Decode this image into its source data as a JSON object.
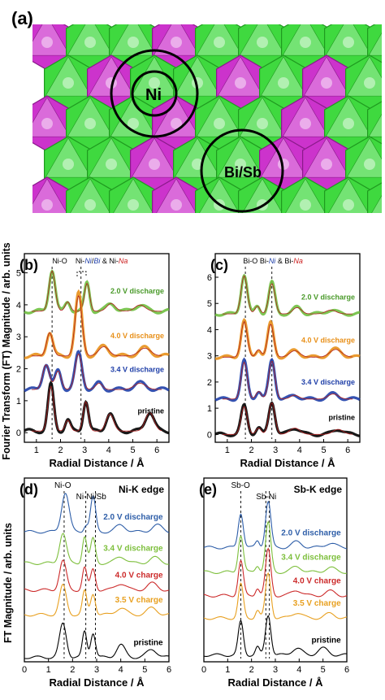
{
  "panel_a": {
    "label": "(a)",
    "circle_labels": [
      "Ni",
      "Bi/Sb"
    ],
    "colors": {
      "green": "#3fd93f",
      "green_dark": "#1f9a1f",
      "magenta": "#cc33cc",
      "magenta_dark": "#8b1a8b"
    }
  },
  "shared": {
    "y_title_top": "Fourier Transform (FT) Magnitude / arb. units",
    "y_title_bottom": "FT Magnitude / arb. units",
    "x_title": "Radial Distance / Å"
  },
  "chart_data": [
    {
      "id": "b",
      "type": "line",
      "panel_label": "(b)",
      "edge_label": "",
      "peak_labels": [
        {
          "text": "Ni-O",
          "color": "#000000"
        },
        {
          "text": "Ni-",
          "color": "#000000"
        },
        {
          "text": "Ni",
          "color": "#1f3fa8"
        },
        {
          "text": "/",
          "color": "#000000"
        },
        {
          "text": "Bi",
          "color": "#1f3fa8"
        },
        {
          "text": " & Ni-",
          "color": "#000000"
        },
        {
          "text": "Na",
          "color": "#cc2020"
        }
      ],
      "xlim": [
        0.5,
        6.5
      ],
      "ylim": [
        -0.3,
        5.6
      ],
      "xticks": [
        1,
        2,
        3,
        4,
        5,
        6
      ],
      "yticks": [
        0,
        1,
        2,
        3,
        4,
        5
      ],
      "dashed_x": [
        1.65,
        2.85
      ],
      "series": [
        {
          "name": "2.0 V discharge",
          "color": "#6fbf3f",
          "offset": 3.8,
          "peaks": [
            [
              1.65,
              1.3,
              0.18
            ],
            [
              2.3,
              0.3,
              0.15
            ],
            [
              3.1,
              0.9,
              0.15
            ],
            [
              4.1,
              0.25,
              0.25
            ],
            [
              5.3,
              0.2,
              0.3
            ]
          ]
        },
        {
          "name": "4.0 V discharge",
          "color": "#e8901a",
          "offset": 2.4,
          "peaks": [
            [
              1.55,
              0.75,
              0.18
            ],
            [
              2.75,
              1.95,
              0.2
            ],
            [
              3.8,
              0.3,
              0.3
            ],
            [
              5.5,
              0.25,
              0.35
            ]
          ]
        },
        {
          "name": "3.4 V discharge",
          "color": "#1f3fa8",
          "offset": 1.35,
          "peaks": [
            [
              1.4,
              0.8,
              0.2
            ],
            [
              1.9,
              0.6,
              0.18
            ],
            [
              2.75,
              1.15,
              0.2
            ],
            [
              3.6,
              0.2,
              0.2
            ],
            [
              5.3,
              0.2,
              0.35
            ]
          ]
        },
        {
          "name": "pristine",
          "color": "#000000",
          "offset": 0.05,
          "peaks": [
            [
              1.6,
              1.45,
              0.17
            ],
            [
              2.3,
              0.35,
              0.15
            ],
            [
              3.05,
              0.95,
              0.15
            ],
            [
              4.05,
              0.55,
              0.22
            ],
            [
              5.7,
              0.6,
              0.25
            ]
          ]
        }
      ]
    },
    {
      "id": "c",
      "type": "line",
      "panel_label": "(c)",
      "edge_label": "",
      "peak_labels": [
        {
          "text": "Bi-O  Bi-",
          "color": "#000000"
        },
        {
          "text": "Ni",
          "color": "#1f3fa8"
        },
        {
          "text": " & Bi-",
          "color": "#000000"
        },
        {
          "text": "Na",
          "color": "#cc2020"
        }
      ],
      "xlim": [
        0.5,
        6.5
      ],
      "ylim": [
        -0.3,
        6.9
      ],
      "xticks": [
        1,
        2,
        3,
        4,
        5,
        6
      ],
      "yticks": [
        0,
        1,
        2,
        3,
        4,
        5,
        6
      ],
      "dashed_x": [
        1.75,
        2.85
      ],
      "series": [
        {
          "name": "2.0 V discharge",
          "color": "#6fbf3f",
          "offset": 4.6,
          "peaks": [
            [
              1.7,
              1.5,
              0.18
            ],
            [
              2.25,
              0.3,
              0.15
            ],
            [
              2.85,
              1.2,
              0.18
            ],
            [
              3.9,
              0.25,
              0.25
            ],
            [
              5.3,
              0.15,
              0.3
            ]
          ]
        },
        {
          "name": "4.0 V discharge",
          "color": "#e8901a",
          "offset": 2.95,
          "peaks": [
            [
              1.7,
              1.4,
              0.18
            ],
            [
              2.3,
              0.3,
              0.15
            ],
            [
              2.8,
              1.3,
              0.18
            ],
            [
              3.8,
              0.25,
              0.3
            ],
            [
              5.5,
              0.3,
              0.35
            ]
          ]
        },
        {
          "name": "3.4 V discharge",
          "color": "#1f3fa8",
          "offset": 1.35,
          "peaks": [
            [
              1.7,
              1.45,
              0.18
            ],
            [
              2.3,
              0.3,
              0.15
            ],
            [
              2.85,
              1.5,
              0.18
            ],
            [
              3.8,
              0.15,
              0.25
            ],
            [
              5.4,
              0.2,
              0.3
            ]
          ]
        },
        {
          "name": "pristine",
          "color": "#000000",
          "offset": 0.0,
          "peaks": [
            [
              1.7,
              1.1,
              0.18
            ],
            [
              2.3,
              0.25,
              0.15
            ],
            [
              2.85,
              1.25,
              0.18
            ],
            [
              3.8,
              0.25,
              0.3
            ],
            [
              5.6,
              0.2,
              0.3
            ]
          ]
        }
      ]
    },
    {
      "id": "d",
      "type": "line",
      "panel_label": "(d)",
      "edge_label": "Ni-K edge",
      "peak_labels": [
        {
          "text": "Ni-O",
          "color": "#000000"
        },
        {
          "text": "Ni-Ni/Sb",
          "color": "#000000"
        }
      ],
      "xlim": [
        0,
        6
      ],
      "ylim": [
        0,
        8.2
      ],
      "xticks": [
        0,
        1,
        2,
        3,
        4,
        5,
        6
      ],
      "yticks": [],
      "dashed_x": [
        1.65,
        2.55,
        2.95
      ],
      "series": [
        {
          "name": "2.0 V discharge",
          "color": "#2e5ea8",
          "offset": 5.8,
          "peaks": [
            [
              1.7,
              1.75,
              0.22
            ],
            [
              2.55,
              0.3,
              0.12
            ],
            [
              2.85,
              1.55,
              0.15
            ],
            [
              4.0,
              0.3,
              0.3
            ],
            [
              5.5,
              0.3,
              0.3
            ]
          ]
        },
        {
          "name": "3.4 V discharge",
          "color": "#7dbf3c",
          "offset": 4.4,
          "peaks": [
            [
              1.6,
              1.35,
              0.2
            ],
            [
              2.5,
              1.2,
              0.13
            ],
            [
              2.85,
              1.1,
              0.14
            ],
            [
              4.0,
              0.3,
              0.3
            ],
            [
              5.4,
              0.25,
              0.3
            ]
          ]
        },
        {
          "name": "4.0 V charge",
          "color": "#cc2a2a",
          "offset": 3.2,
          "peaks": [
            [
              1.6,
              1.3,
              0.2
            ],
            [
              2.5,
              1.0,
              0.13
            ],
            [
              2.85,
              0.95,
              0.14
            ],
            [
              4.0,
              0.3,
              0.3
            ],
            [
              5.3,
              0.3,
              0.3
            ]
          ]
        },
        {
          "name": "3.5 V charge",
          "color": "#e8a020",
          "offset": 2.1,
          "peaks": [
            [
              1.6,
              1.3,
              0.2
            ],
            [
              2.5,
              1.05,
              0.13
            ],
            [
              2.85,
              0.95,
              0.14
            ],
            [
              4.0,
              0.3,
              0.3
            ],
            [
              5.3,
              0.3,
              0.3
            ]
          ]
        },
        {
          "name": "pristine",
          "color": "#000000",
          "offset": 0.2,
          "peaks": [
            [
              1.6,
              1.5,
              0.2
            ],
            [
              2.5,
              1.15,
              0.13
            ],
            [
              2.85,
              1.1,
              0.14
            ],
            [
              4.0,
              0.55,
              0.25
            ],
            [
              5.3,
              0.35,
              0.3
            ]
          ]
        }
      ]
    },
    {
      "id": "e",
      "type": "line",
      "panel_label": "(e)",
      "edge_label": "Sb-K edge",
      "peak_labels": [
        {
          "text": "Sb-O",
          "color": "#000000"
        },
        {
          "text": "Sb-Ni",
          "color": "#000000"
        }
      ],
      "xlim": [
        0,
        6
      ],
      "ylim": [
        0,
        8.2
      ],
      "xticks": [
        0,
        1,
        2,
        3,
        4,
        5,
        6
      ],
      "yticks": [],
      "dashed_x": [
        1.55,
        2.6,
        2.75
      ],
      "series": [
        {
          "name": "2.0 V discharge",
          "color": "#2e5ea8",
          "offset": 5.1,
          "peaks": [
            [
              1.55,
              1.55,
              0.15
            ],
            [
              2.25,
              0.3,
              0.12
            ],
            [
              2.7,
              2.05,
              0.16
            ],
            [
              3.9,
              0.25,
              0.3
            ],
            [
              5.3,
              0.2,
              0.3
            ]
          ]
        },
        {
          "name": "3.4 V discharge",
          "color": "#7dbf3c",
          "offset": 4.0,
          "peaks": [
            [
              1.55,
              1.65,
              0.15
            ],
            [
              2.25,
              0.3,
              0.12
            ],
            [
              2.7,
              2.2,
              0.16
            ],
            [
              3.9,
              0.25,
              0.3
            ],
            [
              5.3,
              0.2,
              0.3
            ]
          ]
        },
        {
          "name": "4.0 V charge",
          "color": "#cc2a2a",
          "offset": 2.95,
          "peaks": [
            [
              1.55,
              1.55,
              0.15
            ],
            [
              2.25,
              0.35,
              0.12
            ],
            [
              2.7,
              2.05,
              0.16
            ],
            [
              3.9,
              0.25,
              0.3
            ],
            [
              5.3,
              0.2,
              0.3
            ]
          ]
        },
        {
          "name": "3.5 V charge",
          "color": "#e8a020",
          "offset": 1.95,
          "peaks": [
            [
              1.55,
              1.5,
              0.15
            ],
            [
              2.25,
              0.35,
              0.12
            ],
            [
              2.7,
              2.0,
              0.16
            ],
            [
              3.9,
              0.25,
              0.3
            ],
            [
              5.3,
              0.2,
              0.3
            ]
          ]
        },
        {
          "name": "pristine",
          "color": "#000000",
          "offset": 0.3,
          "peaks": [
            [
              1.55,
              1.5,
              0.15
            ],
            [
              2.25,
              0.35,
              0.12
            ],
            [
              2.7,
              1.8,
              0.16
            ],
            [
              3.9,
              0.3,
              0.3
            ],
            [
              5.0,
              0.3,
              0.3
            ]
          ]
        }
      ]
    }
  ]
}
